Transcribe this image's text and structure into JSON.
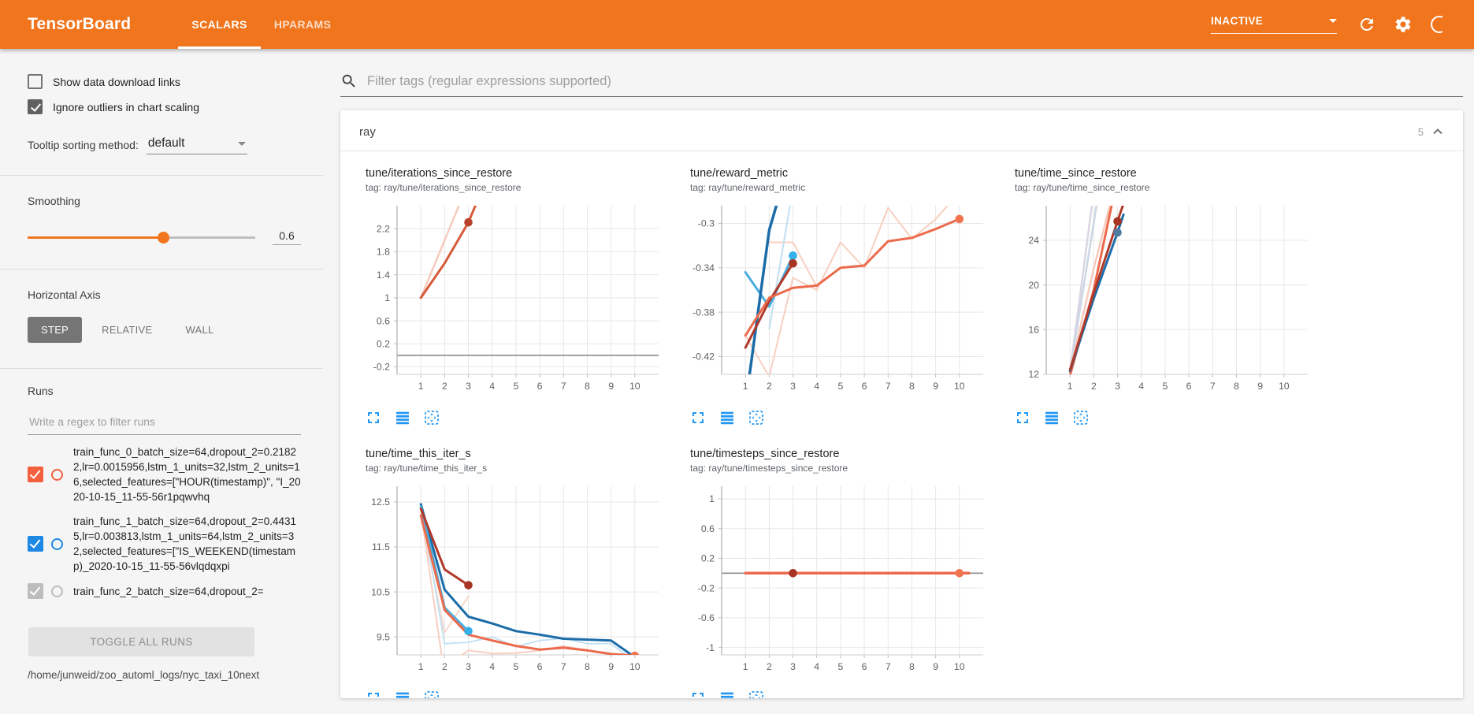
{
  "header": {
    "logo": "TensorBoard",
    "tabs": [
      {
        "label": "SCALARS",
        "active": true
      },
      {
        "label": "HPARAMS",
        "active": false
      }
    ],
    "status_select": {
      "value": "INACTIVE"
    },
    "icons": [
      "refresh-icon",
      "gear-icon",
      "help-icon"
    ],
    "accent_color": "#f0751c"
  },
  "sidebar": {
    "checkboxes": [
      {
        "label": "Show data download links",
        "checked": false
      },
      {
        "label": "Ignore outliers in chart scaling",
        "checked": true
      }
    ],
    "tooltip_sorting": {
      "label": "Tooltip sorting method:",
      "value": "default"
    },
    "smoothing": {
      "label": "Smoothing",
      "value": "0.6",
      "percent": 60
    },
    "horizontal_axis": {
      "label": "Horizontal Axis",
      "options": [
        {
          "label": "STEP",
          "active": true
        },
        {
          "label": "RELATIVE",
          "active": false
        },
        {
          "label": "WALL",
          "active": false
        }
      ]
    },
    "runs": {
      "label": "Runs",
      "filter_placeholder": "Write a regex to filter runs",
      "items": [
        {
          "name": "train_func_0_batch_size=64,dropout_2=0.21822,lr=0.0015956,lstm_1_units=32,lstm_2_units=16,selected_features=[\"HOUR(timestamp)\", \"I_2020-10-15_11-55-56r1pqwvhq",
          "checked": true,
          "color": "#f4603e"
        },
        {
          "name": "train_func_1_batch_size=64,dropout_2=0.44315,lr=0.003813,lstm_1_units=64,lstm_2_units=32,selected_features=[\"IS_WEEKEND(timestamp)_2020-10-15_11-55-56vlqdqxpi",
          "checked": true,
          "color": "#1e88e5"
        },
        {
          "name": "train_func_2_batch_size=64,dropout_2=",
          "checked": true,
          "color": "#9e9e9e"
        }
      ],
      "toggle_all_label": "TOGGLE ALL RUNS",
      "logdir": "/home/junweid/zoo_automl_logs/nyc_taxi_10next"
    }
  },
  "main": {
    "tag_filter_placeholder": "Filter tags (regular expressions supported)",
    "section": {
      "title": "ray",
      "count": "5"
    },
    "chart_footer_icons": [
      "expand-icon",
      "log-scale-icon",
      "fit-domain-icon"
    ],
    "icon_color": "#2196f3"
  },
  "chart_data": [
    {
      "type": "line",
      "title": "tune/iterations_since_restore",
      "tag": "tag: ray/tune/iterations_since_restore",
      "xlim": [
        0,
        11
      ],
      "ylim": [
        -0.33,
        2.6
      ],
      "xticks": [
        1,
        2,
        3,
        4,
        5,
        6,
        7,
        8,
        9,
        10
      ],
      "yticks": [
        2.2,
        1.8,
        1.4,
        1,
        0.6,
        0.2,
        -0.2
      ],
      "zero_line": true,
      "grid": true,
      "legend": "none",
      "series": [
        {
          "name": "raw-orange",
          "color": "#f6cabc",
          "width": 2.5,
          "points": [
            [
              1,
              1
            ],
            [
              2,
              2
            ],
            [
              3,
              3
            ]
          ]
        },
        {
          "name": "smoothed-orange-red",
          "color": "#d65b3b",
          "width": 3,
          "points": [
            [
              1,
              1
            ],
            [
              2,
              1.6
            ],
            [
              3,
              2.31
            ],
            [
              3.7,
              3.0
            ]
          ]
        }
      ],
      "dots": [
        {
          "x": 3,
          "y": 2.31,
          "color": "#b8432c"
        }
      ]
    },
    {
      "type": "line",
      "title": "tune/reward_metric",
      "tag": "tag: ray/tune/reward_metric",
      "xlim": [
        0,
        11
      ],
      "ylim": [
        -0.436,
        -0.284
      ],
      "xticks": [
        1,
        2,
        3,
        4,
        5,
        6,
        7,
        8,
        9,
        10
      ],
      "yticks": [
        -0.3,
        -0.34,
        -0.38,
        -0.42
      ],
      "zero_line": false,
      "grid": true,
      "legend": "none",
      "series": [
        {
          "name": "raw-salmon",
          "color": "#f8cfc2",
          "width": 2,
          "points": [
            [
              1,
              -0.401
            ],
            [
              2,
              -0.438
            ],
            [
              3,
              -0.349
            ],
            [
              4,
              -0.36
            ],
            [
              5,
              -0.317
            ],
            [
              6,
              -0.34
            ],
            [
              7,
              -0.286
            ],
            [
              8,
              -0.314
            ],
            [
              9,
              -0.296
            ],
            [
              10,
              -0.272
            ]
          ]
        },
        {
          "name": "raw-salmon-2",
          "color": "#f8cfc2",
          "width": 2,
          "points": [
            [
              2,
              -0.317
            ],
            [
              3,
              -0.317
            ],
            [
              4,
              -0.357
            ]
          ]
        },
        {
          "name": "raw-lightblue",
          "color": "#bfdff1",
          "width": 2,
          "points": [
            [
              2,
              -0.395
            ],
            [
              3,
              -0.268
            ]
          ]
        },
        {
          "name": "smoothed-cyan",
          "color": "#4aaede",
          "width": 3,
          "points": [
            [
              1,
              -0.344
            ],
            [
              2,
              -0.375
            ],
            [
              3,
              -0.329
            ]
          ]
        },
        {
          "name": "smoothed-darkblue",
          "color": "#1b6ca8",
          "width": 3.5,
          "points": [
            [
              1.15,
              -0.44
            ],
            [
              2,
              -0.306
            ],
            [
              2.6,
              -0.262
            ]
          ]
        },
        {
          "name": "smoothed-darkred",
          "color": "#b0392a",
          "width": 3,
          "points": [
            [
              1,
              -0.412
            ],
            [
              2,
              -0.37
            ],
            [
              3,
              -0.336
            ]
          ]
        },
        {
          "name": "smoothed-orange",
          "color": "#ec6a4c",
          "width": 3,
          "points": [
            [
              1,
              -0.401
            ],
            [
              2,
              -0.367
            ],
            [
              3,
              -0.358
            ],
            [
              4,
              -0.356
            ],
            [
              5,
              -0.34
            ],
            [
              6,
              -0.338
            ],
            [
              7,
              -0.316
            ],
            [
              8,
              -0.313
            ],
            [
              9,
              -0.305
            ],
            [
              10,
              -0.296
            ]
          ]
        }
      ],
      "dots": [
        {
          "x": 3,
          "y": -0.329,
          "color": "#35b1e9"
        },
        {
          "x": 3,
          "y": -0.336,
          "color": "#a83423"
        },
        {
          "x": 10,
          "y": -0.296,
          "color": "#f0744e"
        }
      ]
    },
    {
      "type": "line",
      "title": "tune/time_since_restore",
      "tag": "tag: ray/tune/time_since_restore",
      "xlim": [
        0,
        11
      ],
      "ylim": [
        12,
        27.1
      ],
      "xticks": [
        1,
        2,
        3,
        4,
        5,
        6,
        7,
        8,
        9,
        10
      ],
      "yticks": [
        24,
        20,
        16,
        12
      ],
      "zero_line": false,
      "grid": true,
      "legend": "none",
      "series": [
        {
          "name": "raw-lavender",
          "color": "#d9d6e3",
          "width": 2.5,
          "points": [
            [
              1,
              12.2
            ],
            [
              1.95,
              27.6
            ]
          ]
        },
        {
          "name": "raw-graylue",
          "color": "#ccd6e4",
          "width": 2.5,
          "points": [
            [
              1,
              12.2
            ],
            [
              2.15,
              27.6
            ]
          ]
        },
        {
          "name": "raw-pink",
          "color": "#f6cabc",
          "width": 2.5,
          "points": [
            [
              1,
              12.2
            ],
            [
              2,
              21.5
            ],
            [
              2.9,
              29
            ]
          ]
        },
        {
          "name": "smoothed-orange",
          "color": "#ec6a4c",
          "width": 3,
          "points": [
            [
              1,
              11.9
            ],
            [
              2,
              19.6
            ],
            [
              2.8,
              27.6
            ]
          ]
        },
        {
          "name": "smoothed-darkblue",
          "color": "#1b6ca8",
          "width": 3,
          "points": [
            [
              1,
              12.3
            ],
            [
              2,
              18.8
            ],
            [
              3,
              24.7
            ],
            [
              3.25,
              26.3
            ]
          ]
        },
        {
          "name": "smoothed-darkred",
          "color": "#b0392a",
          "width": 3,
          "points": [
            [
              1,
              12.4
            ],
            [
              2,
              19.3
            ],
            [
              3,
              25.7
            ],
            [
              3.3,
              27.6
            ]
          ]
        }
      ],
      "dots": [
        {
          "x": 3,
          "y": 24.7,
          "color": "#4f7da1"
        },
        {
          "x": 3,
          "y": 25.7,
          "color": "#a83423"
        }
      ]
    },
    {
      "type": "line",
      "title": "tune/time_this_iter_s",
      "tag": "tag: ray/tune/time_this_iter_s",
      "xlim": [
        0,
        11
      ],
      "ylim": [
        9.1,
        12.85
      ],
      "xticks": [
        1,
        2,
        3,
        4,
        5,
        6,
        7,
        8,
        9,
        10
      ],
      "yticks": [
        12.5,
        11.5,
        10.5,
        9.5
      ],
      "zero_line": false,
      "grid": true,
      "legend": "none",
      "series": [
        {
          "name": "raw-pink",
          "color": "#f8cfc2",
          "width": 2,
          "points": [
            [
              1,
              12.3
            ],
            [
              1.95,
              8.8
            ],
            [
              3,
              9.2
            ],
            [
              4,
              9.13
            ],
            [
              5,
              9.14
            ],
            [
              6,
              9.2
            ],
            [
              7,
              9.3
            ],
            [
              8,
              9.2
            ],
            [
              9,
              9.13
            ],
            [
              10,
              9.1
            ]
          ]
        },
        {
          "name": "raw-pink-2",
          "color": "#f8d8cd",
          "width": 2,
          "points": [
            [
              1,
              12.2
            ],
            [
              2,
              9.6
            ],
            [
              3,
              10.4
            ]
          ]
        },
        {
          "name": "raw-lightblue",
          "color": "#c5e1f2",
          "width": 2,
          "points": [
            [
              1,
              12.45
            ],
            [
              2,
              9.35
            ],
            [
              3,
              9.38
            ],
            [
              4,
              9.5
            ],
            [
              5,
              9.28
            ],
            [
              6,
              9.42
            ],
            [
              7,
              9.47
            ],
            [
              8,
              9.35
            ],
            [
              9,
              9.35
            ],
            [
              10,
              8.95
            ]
          ]
        },
        {
          "name": "smoothed-darkblue",
          "color": "#1b6ca8",
          "width": 3,
          "points": [
            [
              1,
              12.45
            ],
            [
              2,
              10.55
            ],
            [
              3,
              9.95
            ],
            [
              4,
              9.8
            ],
            [
              5,
              9.63
            ],
            [
              6,
              9.55
            ],
            [
              7,
              9.46
            ],
            [
              8,
              9.44
            ],
            [
              9,
              9.42
            ],
            [
              10,
              9.05
            ]
          ]
        },
        {
          "name": "smoothed-cyan",
          "color": "#4aaede",
          "width": 3,
          "points": [
            [
              1,
              12.4
            ],
            [
              2,
              10.15
            ],
            [
              3,
              9.63
            ]
          ]
        },
        {
          "name": "smoothed-darkred",
          "color": "#b0392a",
          "width": 3,
          "points": [
            [
              1,
              12.35
            ],
            [
              2,
              11.0
            ],
            [
              3,
              10.65
            ]
          ]
        },
        {
          "name": "smoothed-orange",
          "color": "#ec6a4c",
          "width": 3,
          "points": [
            [
              1,
              12.2
            ],
            [
              2,
              10.1
            ],
            [
              3,
              9.55
            ],
            [
              4,
              9.42
            ],
            [
              5,
              9.3
            ],
            [
              6,
              9.22
            ],
            [
              7,
              9.26
            ],
            [
              8,
              9.2
            ],
            [
              9,
              9.12
            ],
            [
              10,
              9.08
            ]
          ]
        }
      ],
      "dots": [
        {
          "x": 3,
          "y": 9.63,
          "color": "#35b1e9"
        },
        {
          "x": 3,
          "y": 10.65,
          "color": "#a83423"
        },
        {
          "x": 10,
          "y": 9.08,
          "color": "#f0744e"
        }
      ]
    },
    {
      "type": "line",
      "title": "tune/timesteps_since_restore",
      "tag": "tag: ray/tune/timesteps_since_restore",
      "xlim": [
        0,
        11
      ],
      "ylim": [
        -1.1,
        1.17
      ],
      "xticks": [
        1,
        2,
        3,
        4,
        5,
        6,
        7,
        8,
        9,
        10
      ],
      "yticks": [
        1,
        0.6,
        0.2,
        -0.2,
        -0.6,
        -1
      ],
      "zero_line": true,
      "grid": true,
      "legend": "none",
      "series": [
        {
          "name": "smoothed-darkred",
          "color": "#b0392a",
          "width": 3,
          "points": [
            [
              1,
              0
            ],
            [
              3,
              0
            ]
          ]
        },
        {
          "name": "smoothed-orange",
          "color": "#ec6a4c",
          "width": 3.5,
          "points": [
            [
              1,
              0
            ],
            [
              10.4,
              0
            ]
          ]
        }
      ],
      "dots": [
        {
          "x": 3,
          "y": 0,
          "color": "#a83423"
        },
        {
          "x": 10,
          "y": 0,
          "color": "#f0744e"
        }
      ]
    }
  ]
}
